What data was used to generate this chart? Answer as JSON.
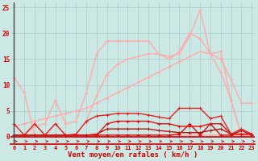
{
  "background_color": "#cce8e4",
  "grid_color": "#aacccc",
  "xlabel": "Vent moyen/en rafales ( km/h )",
  "xlabel_color": "#cc0000",
  "x": [
    0,
    1,
    2,
    3,
    4,
    5,
    6,
    7,
    8,
    9,
    10,
    11,
    12,
    13,
    14,
    15,
    16,
    17,
    18,
    19,
    20,
    21,
    22,
    23
  ],
  "ylim": [
    -1.5,
    26
  ],
  "xlim": [
    -0.3,
    23.3
  ],
  "yticks": [
    0,
    5,
    10,
    15,
    20,
    25
  ],
  "series": [
    {
      "y": [
        11.5,
        8.5,
        0.3,
        0.3,
        0.3,
        0.3,
        0.3,
        0.3,
        0.3,
        0.3,
        0.3,
        0.3,
        0.3,
        0.3,
        0.3,
        0.3,
        0.3,
        0.3,
        0.3,
        0.3,
        0.3,
        0.3,
        0.3,
        0.3
      ],
      "color": "#ffaaaa",
      "lw": 1.0
    },
    {
      "y": [
        2.0,
        2.5,
        3.0,
        3.5,
        4.0,
        4.5,
        5.0,
        5.5,
        6.5,
        7.5,
        8.5,
        9.5,
        10.5,
        11.5,
        12.5,
        13.5,
        14.5,
        15.5,
        16.5,
        16.0,
        15.0,
        11.0,
        6.5,
        6.5
      ],
      "color": "#ffaaaa",
      "lw": 1.0
    },
    {
      "y": [
        0.3,
        0.3,
        2.0,
        2.5,
        7.0,
        2.5,
        3.0,
        8.5,
        16.0,
        18.5,
        18.5,
        18.5,
        18.5,
        18.5,
        16.0,
        15.5,
        16.0,
        19.5,
        24.5,
        16.0,
        12.5,
        7.0,
        0.3,
        0.3
      ],
      "color": "#ffaaaa",
      "lw": 1.0
    },
    {
      "y": [
        0.3,
        0.3,
        2.5,
        0.3,
        2.5,
        0.3,
        0.3,
        3.0,
        8.0,
        12.0,
        14.0,
        15.0,
        15.5,
        16.0,
        16.0,
        15.0,
        16.5,
        20.0,
        19.0,
        16.0,
        16.5,
        7.0,
        0.3,
        0.3
      ],
      "color": "#ffaaaa",
      "lw": 1.0
    },
    {
      "y": [
        2.5,
        0.3,
        2.5,
        0.3,
        2.5,
        0.3,
        0.5,
        3.0,
        4.0,
        4.2,
        4.5,
        4.5,
        4.5,
        4.2,
        3.8,
        3.5,
        5.5,
        5.5,
        5.5,
        3.5,
        4.0,
        0.5,
        1.5,
        0.5
      ],
      "color": "#dd2222",
      "lw": 1.0
    },
    {
      "y": [
        0.3,
        0.3,
        0.3,
        0.3,
        0.3,
        0.3,
        0.3,
        0.3,
        0.3,
        0.3,
        0.3,
        0.3,
        0.3,
        0.3,
        0.3,
        0.3,
        0.5,
        2.5,
        0.3,
        2.5,
        0.3,
        0.3,
        1.2,
        0.3
      ],
      "color": "#cc1111",
      "lw": 1.0
    },
    {
      "y": [
        0.3,
        0.3,
        0.3,
        0.3,
        0.3,
        0.3,
        0.3,
        0.3,
        0.5,
        1.5,
        1.5,
        1.5,
        1.5,
        1.5,
        1.2,
        1.0,
        0.8,
        0.8,
        0.8,
        1.2,
        1.5,
        0.5,
        0.5,
        0.5
      ],
      "color": "#bb1111",
      "lw": 1.0
    },
    {
      "y": [
        0.3,
        0.3,
        0.3,
        0.3,
        0.3,
        0.3,
        0.3,
        0.3,
        0.3,
        2.5,
        3.0,
        3.0,
        3.0,
        3.0,
        2.5,
        2.5,
        2.0,
        2.0,
        2.0,
        2.5,
        2.5,
        0.5,
        0.5,
        0.5
      ],
      "color": "#dd1111",
      "lw": 1.0
    }
  ]
}
